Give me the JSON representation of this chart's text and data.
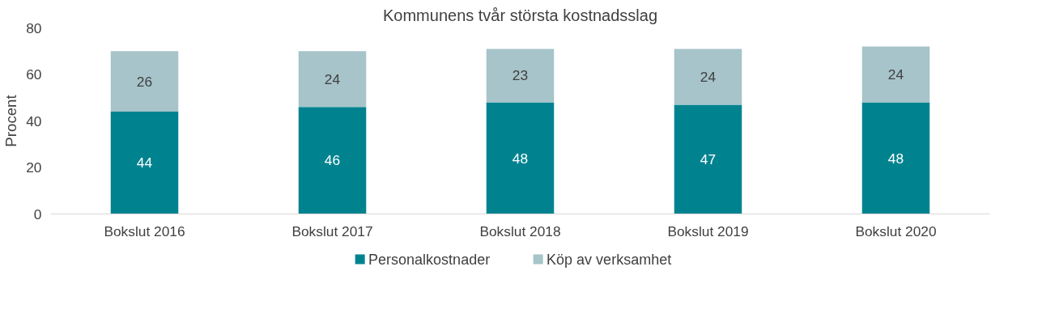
{
  "chart_data": {
    "type": "bar",
    "title": "Kommunens tvår största kostnadsslag",
    "ylabel": "Procent",
    "categories": [
      "Bokslut 2016",
      "Bokslut 2017",
      "Bokslut 2018",
      "Bokslut 2019",
      "Bokslut 2020"
    ],
    "stacked": true,
    "data_labels": true,
    "grid": false,
    "legend": "bottom",
    "ylim": [
      0,
      80
    ],
    "yticks": [
      0,
      20,
      40,
      60,
      80
    ],
    "series": [
      {
        "name": "Personalkostnader",
        "color": "#00838f",
        "values": [
          44,
          46,
          48,
          47,
          48
        ]
      },
      {
        "name": "Köp av verksamhet",
        "color": "#a6c4c9",
        "values": [
          26,
          24,
          23,
          24,
          24
        ]
      }
    ]
  }
}
